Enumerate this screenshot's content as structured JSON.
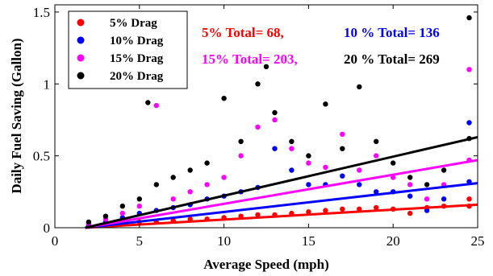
{
  "chart_data": {
    "type": "scatter",
    "xlabel": "Average Speed (mph)",
    "ylabel": "Daily Fuel Saving (Gallon)",
    "xlim": [
      0,
      25
    ],
    "ylim": [
      0,
      1.55
    ],
    "xticks": [
      0,
      5,
      10,
      15,
      20,
      25
    ],
    "yticks": [
      0,
      0.5,
      1,
      1.5
    ],
    "ytick_labels": [
      "0",
      "0.5",
      "1",
      "1.5"
    ],
    "legend_position": "top-left",
    "grid": false,
    "series": [
      {
        "name": "5% Drag",
        "color": "#ff0000",
        "trend": [
          [
            1.8,
            0.0
          ],
          [
            25,
            0.16
          ]
        ],
        "points": [
          [
            2,
            0.01
          ],
          [
            3,
            0.02
          ],
          [
            4,
            0.03
          ],
          [
            5,
            0.04
          ],
          [
            6,
            0.04
          ],
          [
            7,
            0.05
          ],
          [
            8,
            0.06
          ],
          [
            9,
            0.06
          ],
          [
            10,
            0.07
          ],
          [
            11,
            0.08
          ],
          [
            12,
            0.09
          ],
          [
            13,
            0.09
          ],
          [
            14,
            0.1
          ],
          [
            15,
            0.11
          ],
          [
            16,
            0.12
          ],
          [
            17,
            0.13
          ],
          [
            18,
            0.13
          ],
          [
            19,
            0.14
          ],
          [
            20,
            0.13
          ],
          [
            21,
            0.1
          ],
          [
            22,
            0.14
          ],
          [
            23,
            0.15
          ],
          [
            24.5,
            0.15
          ],
          [
            24.5,
            0.2
          ]
        ]
      },
      {
        "name": "10% Drag",
        "color": "#0000ff",
        "trend": [
          [
            1.8,
            0.0
          ],
          [
            25,
            0.31
          ]
        ],
        "points": [
          [
            2,
            0.02
          ],
          [
            3,
            0.04
          ],
          [
            4,
            0.07
          ],
          [
            5,
            0.1
          ],
          [
            6,
            0.12
          ],
          [
            7,
            0.14
          ],
          [
            8,
            0.16
          ],
          [
            9,
            0.2
          ],
          [
            10,
            0.22
          ],
          [
            11,
            0.25
          ],
          [
            12,
            0.28
          ],
          [
            13,
            0.55
          ],
          [
            14,
            0.4
          ],
          [
            15,
            0.3
          ],
          [
            16,
            0.3
          ],
          [
            17,
            0.36
          ],
          [
            18,
            0.3
          ],
          [
            19,
            0.25
          ],
          [
            20,
            0.25
          ],
          [
            21,
            0.22
          ],
          [
            22,
            0.12
          ],
          [
            23,
            0.2
          ],
          [
            24.5,
            0.73
          ],
          [
            24.5,
            0.32
          ]
        ]
      },
      {
        "name": "15% Drag",
        "color": "#ff00ff",
        "trend": [
          [
            1.8,
            0.0
          ],
          [
            25,
            0.47
          ]
        ],
        "points": [
          [
            2,
            0.03
          ],
          [
            3,
            0.06
          ],
          [
            4,
            0.1
          ],
          [
            5,
            0.15
          ],
          [
            6,
            0.85
          ],
          [
            7,
            0.2
          ],
          [
            8,
            0.25
          ],
          [
            9,
            0.3
          ],
          [
            10,
            0.35
          ],
          [
            11,
            0.5
          ],
          [
            12,
            0.7
          ],
          [
            13,
            0.75
          ],
          [
            14,
            0.55
          ],
          [
            15,
            0.45
          ],
          [
            16,
            0.42
          ],
          [
            17,
            0.65
          ],
          [
            18,
            0.4
          ],
          [
            19,
            0.5
          ],
          [
            20,
            0.35
          ],
          [
            21,
            0.3
          ],
          [
            22,
            0.2
          ],
          [
            23,
            0.3
          ],
          [
            24.5,
            1.1
          ],
          [
            24.5,
            0.47
          ]
        ]
      },
      {
        "name": "20% Drag",
        "color": "#000000",
        "trend": [
          [
            1.8,
            0.0
          ],
          [
            25,
            0.63
          ]
        ],
        "points": [
          [
            2,
            0.04
          ],
          [
            3,
            0.08
          ],
          [
            4,
            0.15
          ],
          [
            5,
            0.2
          ],
          [
            5.5,
            0.87
          ],
          [
            6,
            0.3
          ],
          [
            7,
            0.35
          ],
          [
            8,
            0.4
          ],
          [
            9,
            0.45
          ],
          [
            10,
            0.9
          ],
          [
            11,
            0.6
          ],
          [
            12,
            1.0
          ],
          [
            12.5,
            1.12
          ],
          [
            13,
            0.8
          ],
          [
            14,
            0.6
          ],
          [
            15,
            0.5
          ],
          [
            16,
            0.86
          ],
          [
            17,
            0.55
          ],
          [
            18,
            0.98
          ],
          [
            19,
            0.6
          ],
          [
            20,
            0.45
          ],
          [
            21,
            0.35
          ],
          [
            22,
            0.3
          ],
          [
            23,
            0.4
          ],
          [
            24.5,
            1.46
          ],
          [
            24.5,
            0.62
          ]
        ]
      }
    ],
    "annotations": [
      {
        "text": "5% Total=   68,",
        "color": "#ff0000"
      },
      {
        "text": "10 % Total=  136",
        "color": "#0000ff"
      },
      {
        "text": "15% Total=  203,",
        "color": "#ff00ff"
      },
      {
        "text": "20 % Total=  269",
        "color": "#000000"
      }
    ]
  }
}
